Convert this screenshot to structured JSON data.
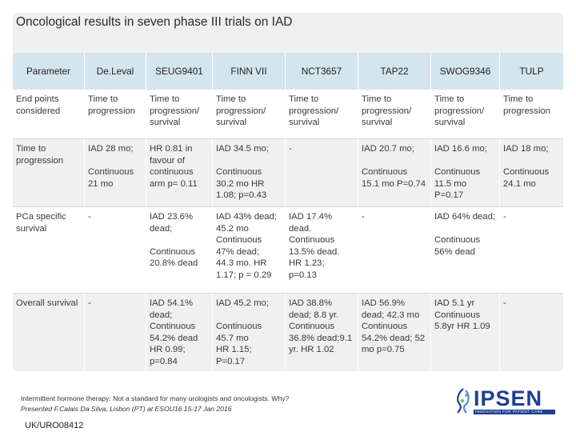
{
  "slide": {
    "title": "Oncological results in seven phase III trials on IAD",
    "code": "UK/URO08412"
  },
  "table": {
    "headers": [
      "Parameter",
      "De.Leval",
      "SEUG9401",
      "FINN VII",
      "NCT3657",
      "TAP22",
      "SWOG9346",
      "TULP"
    ],
    "rows": [
      {
        "label": "End points considered",
        "cells": [
          "Time to progression",
          "Time to progression/ survival",
          "Time to progression/ survival",
          "Time to progression/ survival",
          "Time to progression/ survival",
          "Time to progression/ survival",
          "Time to progression"
        ]
      },
      {
        "label": "Time to progression",
        "cells": [
          "IAD 28 mo;\n\nContinuous 21 mo",
          "HR 0.81 in favour of continuous arm p= 0.11",
          "IAD 34.5 mo;\n\nContinuous 30.2 mo HR 1.08; p=0.43",
          "-",
          "IAD 20.7 mo;\n\nContinuous 15.1 mo P=0.74",
          "IAD 16.6 mo;\n\nContinuous 11.5 mo P=0.17",
          "IAD 18 mo;\n\nContinuous 24.1 mo"
        ]
      },
      {
        "label": "PCa specific survival",
        "cells": [
          "-",
          "IAD 23.6% dead;\n\nContinuous 20.8% dead",
          "IAD 43% dead;\n45.2 mo Continuous 47% dead;\n44.3 mo. HR 1.17; p = 0.29",
          "IAD 17.4% dead. Continuous 13.5% dead. HR 1.23; p=0.13",
          "-",
          "IAD 64% dead;\n\nContinuous 56% dead",
          "-"
        ]
      },
      {
        "label": "Overall survival",
        "cells": [
          "-",
          "IAD 54.1% dead;\nContinuous 54.2% dead HR 0.99; p=0.84",
          "IAD 45.2 mo;\n\nContinuous 45.7 mo\nHR 1.15; P=0.17",
          "IAD 38.8% dead; 8.8 yr. Continuous 36.8% dead;9.1 yr. HR 1.02",
          "IAD 56.9% dead; 42.3 mo Continuous 54.2% dead; 52 mo p=0.75",
          "IAD 5.1 yr Continuous 5.8yr HR 1.09",
          "-"
        ]
      }
    ]
  },
  "footnote": {
    "line1": "Intermittent hormone therapy: Not a standard for many urologists and oncologists. Why?",
    "line2": "Presented F.Calais Da Silva, Lisbon (PT) at ESOU16 15-17 Jan 2016"
  },
  "logo": {
    "text": "IPSEN",
    "tagline": "INNOVATION FOR PATIENT CARE",
    "icon": "ipsen-logo-mark-icon",
    "color": "#1d3f8f"
  },
  "colors": {
    "header_bg": "#d3e6ee",
    "row_alt_bg": "#f0f0f0",
    "title_band_bg": "#efefef"
  }
}
